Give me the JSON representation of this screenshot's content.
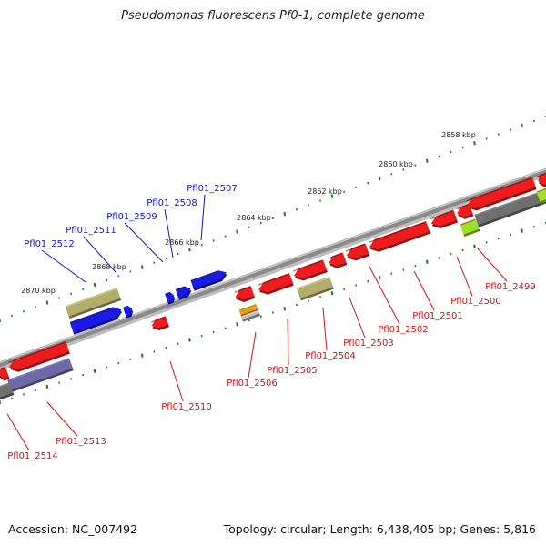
{
  "title": "Pseudomonas fluorescens Pf0-1, complete genome",
  "accession": "Accession: NC_007492",
  "summary": "Topology: circular; Length: 6,438,405 bp; Genes: 5,816",
  "colors": {
    "backbone": "#8a8a8a",
    "tick": "#1f7a1f",
    "plus_label": "#1414c8",
    "minus_label": "#c81414",
    "gene_red": "#ee1c1c",
    "gene_blue": "#1a1ae6",
    "gene_olive": "#b3ad6c",
    "gene_slate": "#6e6aa8",
    "gene_grey": "#6f6f6f",
    "gene_lime": "#9ee02a",
    "gene_orange": "#f39a19"
  },
  "ruler": {
    "kbp_labels": [
      "2858 kbp",
      "2860 kbp",
      "2862 kbp",
      "2864 kbp",
      "2866 kbp",
      "2868 kbp",
      "2870 kbp"
    ]
  },
  "plus_strand_labels": [
    "Pfl01_2507",
    "Pfl01_2508",
    "Pfl01_2509",
    "Pfl01_2511",
    "Pfl01_2512"
  ],
  "minus_strand_labels": [
    "Pfl01_2499",
    "Pfl01_2500",
    "Pfl01_2501",
    "Pfl01_2502",
    "Pfl01_2503",
    "Pfl01_2504",
    "Pfl01_2505",
    "Pfl01_2506",
    "Pfl01_2510",
    "Pfl01_2513",
    "Pfl01_2514"
  ]
}
